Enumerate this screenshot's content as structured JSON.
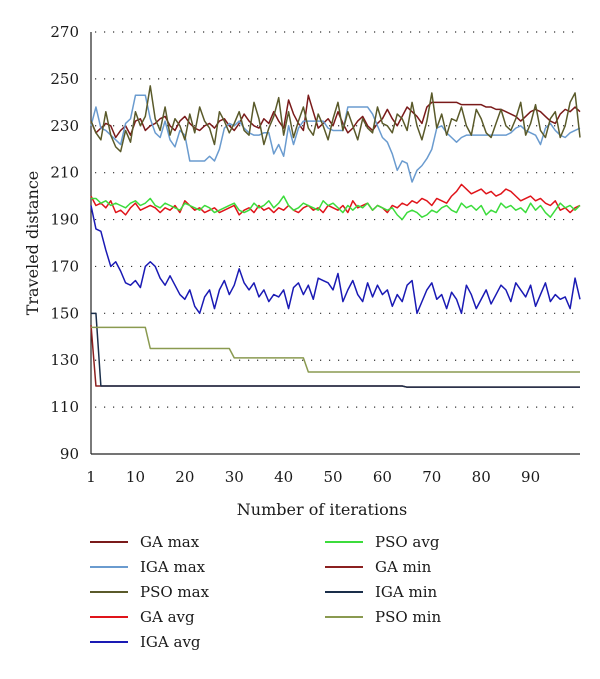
{
  "chart_data": {
    "type": "line",
    "title": "",
    "xlabel": "Number of iterations",
    "ylabel": "Traveled distance",
    "xlim": [
      1,
      100
    ],
    "ylim": [
      90,
      270
    ],
    "xticks": [
      1,
      10,
      20,
      30,
      40,
      50,
      60,
      70,
      80,
      90
    ],
    "yticks": [
      90,
      110,
      130,
      150,
      170,
      190,
      210,
      230,
      250,
      270
    ],
    "grid": "horizontal dotted",
    "legend_position": "bottom",
    "legend_columns": 2,
    "series": [
      {
        "name": "GA max",
        "color": "#7a1a1a",
        "values": [
          232,
          227,
          229,
          231,
          230,
          225,
          228,
          230,
          226,
          232,
          233,
          228,
          230,
          231,
          233,
          234,
          230,
          228,
          232,
          234,
          231,
          229,
          228,
          230,
          231,
          229,
          232,
          233,
          230,
          228,
          231,
          235,
          232,
          230,
          229,
          233,
          231,
          236,
          232,
          229,
          241,
          235,
          231,
          228,
          243,
          236,
          229,
          231,
          233,
          230,
          236,
          231,
          227,
          229,
          232,
          234,
          230,
          228,
          231,
          233,
          237,
          233,
          230,
          234,
          238,
          236,
          234,
          231,
          238,
          240,
          240,
          240,
          240,
          240,
          240,
          239,
          239,
          239,
          239,
          239,
          238,
          238,
          237,
          237,
          236,
          235,
          234,
          232,
          234,
          236,
          237,
          236,
          234,
          232,
          231,
          235,
          237,
          236,
          238,
          236
        ]
      },
      {
        "name": "IGA max",
        "color": "#6a9bcf",
        "values": [
          230,
          238,
          229,
          228,
          226,
          224,
          222,
          231,
          233,
          243,
          243,
          243,
          233,
          227,
          225,
          232,
          224,
          221,
          228,
          226,
          215,
          215,
          215,
          215,
          217,
          215,
          220,
          229,
          231,
          230,
          232,
          229,
          227,
          226,
          226,
          227,
          227,
          218,
          222,
          217,
          230,
          222,
          229,
          232,
          232,
          232,
          232,
          232,
          229,
          228,
          228,
          228,
          238,
          238,
          238,
          238,
          238,
          235,
          230,
          225,
          223,
          218,
          211,
          215,
          214,
          206,
          211,
          213,
          216,
          220,
          229,
          230,
          227,
          225,
          223,
          225,
          226,
          226,
          226,
          226,
          226,
          226,
          226,
          226,
          226,
          227,
          229,
          230,
          228,
          227,
          226,
          222,
          229,
          231,
          228,
          226,
          225,
          227,
          228,
          229
        ]
      },
      {
        "name": "PSO max",
        "color": "#5a5a2a",
        "values": [
          232,
          227,
          224,
          236,
          226,
          221,
          219,
          228,
          223,
          236,
          230,
          234,
          247,
          233,
          228,
          238,
          226,
          233,
          230,
          224,
          235,
          227,
          238,
          232,
          229,
          222,
          236,
          232,
          227,
          231,
          236,
          228,
          226,
          240,
          233,
          222,
          229,
          234,
          242,
          226,
          236,
          225,
          232,
          238,
          229,
          226,
          235,
          230,
          224,
          233,
          240,
          228,
          236,
          230,
          224,
          233,
          229,
          227,
          238,
          231,
          230,
          227,
          235,
          233,
          228,
          240,
          230,
          224,
          232,
          244,
          229,
          235,
          226,
          233,
          232,
          238,
          230,
          226,
          237,
          233,
          227,
          225,
          231,
          237,
          230,
          228,
          233,
          240,
          226,
          231,
          239,
          228,
          225,
          233,
          236,
          225,
          230,
          240,
          244,
          225
        ]
      },
      {
        "name": "GA avg",
        "color": "#e0141a",
        "values": [
          200,
          196,
          197,
          195,
          198,
          193,
          194,
          192,
          195,
          197,
          194,
          195,
          196,
          195,
          193,
          195,
          194,
          196,
          193,
          198,
          196,
          194,
          195,
          193,
          194,
          195,
          193,
          194,
          195,
          196,
          192,
          194,
          195,
          193,
          196,
          194,
          195,
          193,
          195,
          194,
          196,
          194,
          193,
          195,
          196,
          194,
          195,
          193,
          196,
          195,
          194,
          196,
          193,
          198,
          195,
          196,
          197,
          194,
          196,
          195,
          193,
          196,
          195,
          197,
          196,
          198,
          197,
          199,
          198,
          196,
          199,
          198,
          197,
          200,
          202,
          205,
          203,
          201,
          202,
          203,
          201,
          202,
          200,
          201,
          203,
          202,
          200,
          198,
          199,
          200,
          198,
          199,
          197,
          196,
          198,
          194,
          195,
          193,
          195,
          196
        ]
      },
      {
        "name": "IGA avg",
        "color": "#1a1ab4",
        "values": [
          196,
          186,
          185,
          177,
          170,
          172,
          168,
          163,
          162,
          164,
          161,
          170,
          172,
          170,
          165,
          162,
          166,
          162,
          158,
          156,
          160,
          153,
          150,
          157,
          160,
          152,
          160,
          164,
          158,
          162,
          169,
          163,
          160,
          163,
          157,
          160,
          155,
          158,
          157,
          160,
          152,
          161,
          163,
          158,
          162,
          156,
          165,
          164,
          163,
          160,
          167,
          155,
          160,
          164,
          158,
          155,
          163,
          157,
          162,
          158,
          160,
          153,
          158,
          155,
          162,
          164,
          150,
          155,
          160,
          163,
          156,
          158,
          152,
          159,
          156,
          150,
          162,
          158,
          152,
          156,
          160,
          154,
          158,
          162,
          160,
          155,
          163,
          160,
          157,
          162,
          153,
          158,
          163,
          155,
          158,
          156,
          157,
          152,
          165,
          156
        ]
      },
      {
        "name": "PSO avg",
        "color": "#3cdc3c",
        "values": [
          199,
          199,
          197,
          198,
          196,
          197,
          196,
          195,
          197,
          198,
          196,
          197,
          199,
          196,
          195,
          197,
          196,
          195,
          194,
          197,
          196,
          195,
          194,
          196,
          195,
          193,
          194,
          195,
          196,
          197,
          194,
          193,
          194,
          197,
          195,
          196,
          198,
          195,
          197,
          200,
          196,
          194,
          195,
          197,
          196,
          195,
          194,
          198,
          196,
          197,
          195,
          193,
          196,
          194,
          196,
          195,
          197,
          194,
          196,
          195,
          194,
          195,
          192,
          190,
          193,
          194,
          193,
          191,
          192,
          194,
          193,
          195,
          196,
          194,
          193,
          197,
          195,
          196,
          194,
          196,
          192,
          194,
          193,
          197,
          195,
          196,
          194,
          195,
          193,
          197,
          194,
          196,
          193,
          191,
          194,
          197,
          195,
          196,
          194,
          196
        ]
      },
      {
        "name": "GA min",
        "color": "#8b2020",
        "values": [
          145,
          119,
          119,
          119,
          119,
          119,
          119,
          119,
          119,
          119,
          119,
          119,
          119,
          119,
          119,
          119,
          119,
          119,
          119,
          119,
          119,
          119,
          119,
          119,
          119,
          119,
          119,
          119,
          119,
          119,
          119,
          119,
          119,
          119,
          119,
          119,
          119,
          119,
          119,
          119,
          119,
          119,
          119,
          119,
          119,
          119,
          119,
          119,
          119,
          119,
          119,
          119,
          119,
          119,
          119,
          119,
          119,
          119,
          119,
          119,
          119,
          119,
          119,
          119,
          118.5,
          118.5,
          118.5,
          118.5,
          118.5,
          118.5,
          118.5,
          118.5,
          118.5,
          118.5,
          118.5,
          118.5,
          118.5,
          118.5,
          118.5,
          118.5,
          118.5,
          118.5,
          118.5,
          118.5,
          118.5,
          118.5,
          118.5,
          118.5,
          118.5,
          118.5,
          118.5,
          118.5,
          118.5,
          118.5,
          118.5,
          118.5,
          118.5,
          118.5,
          118.5,
          118.5
        ]
      },
      {
        "name": "IGA min",
        "color": "#1a2e4a",
        "values": [
          150,
          150,
          119,
          119,
          119,
          119,
          119,
          119,
          119,
          119,
          119,
          119,
          119,
          119,
          119,
          119,
          119,
          119,
          119,
          119,
          119,
          119,
          119,
          119,
          119,
          119,
          119,
          119,
          119,
          119,
          119,
          119,
          119,
          119,
          119,
          119,
          119,
          119,
          119,
          119,
          119,
          119,
          119,
          119,
          119,
          119,
          119,
          119,
          119,
          119,
          119,
          119,
          119,
          119,
          119,
          119,
          119,
          119,
          119,
          119,
          119,
          119,
          119,
          119,
          118.5,
          118.5,
          118.5,
          118.5,
          118.5,
          118.5,
          118.5,
          118.5,
          118.5,
          118.5,
          118.5,
          118.5,
          118.5,
          118.5,
          118.5,
          118.5,
          118.5,
          118.5,
          118.5,
          118.5,
          118.5,
          118.5,
          118.5,
          118.5,
          118.5,
          118.5,
          118.5,
          118.5,
          118.5,
          118.5,
          118.5,
          118.5,
          118.5,
          118.5,
          118.5,
          118.5
        ]
      },
      {
        "name": "PSO min",
        "color": "#8a9a50",
        "values": [
          144,
          144,
          144,
          144,
          144,
          144,
          144,
          144,
          144,
          144,
          144,
          144,
          135,
          135,
          135,
          135,
          135,
          135,
          135,
          135,
          135,
          135,
          135,
          135,
          135,
          135,
          135,
          135,
          135,
          131,
          131,
          131,
          131,
          131,
          131,
          131,
          131,
          131,
          131,
          131,
          131,
          131,
          131,
          131,
          125,
          125,
          125,
          125,
          125,
          125,
          125,
          125,
          125,
          125,
          125,
          125,
          125,
          125,
          125,
          125,
          125,
          125,
          125,
          125,
          125,
          125,
          125,
          125,
          125,
          125,
          125,
          125,
          125,
          125,
          125,
          125,
          125,
          125,
          125,
          125,
          125,
          125,
          125,
          125,
          125,
          125,
          125,
          125,
          125,
          125,
          125,
          125,
          125,
          125,
          125,
          125,
          125,
          125,
          125,
          125
        ]
      }
    ]
  }
}
